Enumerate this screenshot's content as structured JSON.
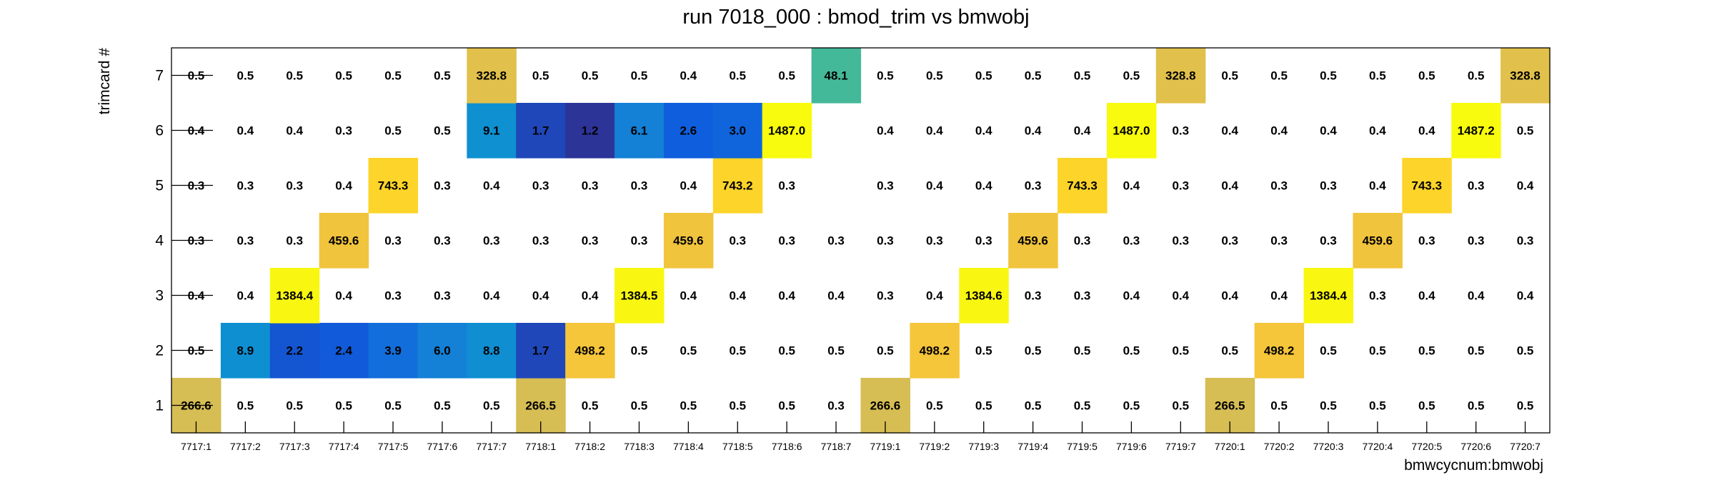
{
  "chart_data": {
    "type": "heatmap",
    "title": "run 7018_000 : bmod_trim vs bmwobj",
    "xlabel": "bmwcycnum:bmwobj",
    "ylabel": "trimcard #",
    "x_categories": [
      "7717:1",
      "7717:2",
      "7717:3",
      "7717:4",
      "7717:5",
      "7717:6",
      "7717:7",
      "7718:1",
      "7718:2",
      "7718:3",
      "7718:4",
      "7718:5",
      "7718:6",
      "7718:7",
      "7719:1",
      "7719:2",
      "7719:3",
      "7719:4",
      "7719:5",
      "7719:6",
      "7719:7",
      "7720:1",
      "7720:2",
      "7720:3",
      "7720:4",
      "7720:5",
      "7720:6",
      "7720:7"
    ],
    "y_categories": [
      "1",
      "2",
      "3",
      "4",
      "5",
      "6",
      "7"
    ],
    "value_labels": [
      [
        "266.6",
        "0.5",
        "0.5",
        "0.5",
        "0.5",
        "0.5",
        "0.5",
        "266.5",
        "0.5",
        "0.5",
        "0.5",
        "0.5",
        "0.5",
        "0.3",
        "266.6",
        "0.5",
        "0.5",
        "0.5",
        "0.5",
        "0.5",
        "0.5",
        "266.5",
        "0.5",
        "0.5",
        "0.5",
        "0.5",
        "0.5",
        "0.5"
      ],
      [
        "0.5",
        "8.9",
        "2.2",
        "2.4",
        "3.9",
        "6.0",
        "8.8",
        "1.7",
        "498.2",
        "0.5",
        "0.5",
        "0.5",
        "0.5",
        "0.5",
        "0.5",
        "498.2",
        "0.5",
        "0.5",
        "0.5",
        "0.5",
        "0.5",
        "0.5",
        "498.2",
        "0.5",
        "0.5",
        "0.5",
        "0.5",
        "0.5"
      ],
      [
        "0.4",
        "0.4",
        "1384.4",
        "0.4",
        "0.3",
        "0.3",
        "0.4",
        "0.4",
        "0.4",
        "1384.5",
        "0.4",
        "0.4",
        "0.4",
        "0.4",
        "0.3",
        "0.4",
        "1384.6",
        "0.3",
        "0.3",
        "0.4",
        "0.4",
        "0.4",
        "0.4",
        "1384.4",
        "0.3",
        "0.4",
        "0.4",
        "0.4"
      ],
      [
        "0.3",
        "0.3",
        "0.3",
        "459.6",
        "0.3",
        "0.3",
        "0.3",
        "0.3",
        "0.3",
        "0.3",
        "459.6",
        "0.3",
        "0.3",
        "0.3",
        "0.3",
        "0.3",
        "0.3",
        "459.6",
        "0.3",
        "0.3",
        "0.3",
        "0.3",
        "0.3",
        "0.3",
        "459.6",
        "0.3",
        "0.3",
        "0.3"
      ],
      [
        "0.3",
        "0.3",
        "0.3",
        "0.4",
        "743.3",
        "0.3",
        "0.4",
        "0.3",
        "0.3",
        "0.3",
        "0.4",
        "743.2",
        "0.3",
        null,
        "0.3",
        "0.4",
        "0.4",
        "0.3",
        "743.3",
        "0.4",
        "0.3",
        "0.4",
        "0.3",
        "0.3",
        "0.4",
        "743.3",
        "0.3",
        "0.4"
      ],
      [
        "0.4",
        "0.4",
        "0.4",
        "0.3",
        "0.5",
        "0.5",
        "9.1",
        "1.7",
        "1.2",
        "6.1",
        "2.6",
        "3.0",
        "1487.0",
        null,
        "0.4",
        "0.4",
        "0.4",
        "0.4",
        "0.4",
        "1487.0",
        "0.3",
        "0.4",
        "0.4",
        "0.4",
        "0.4",
        "0.4",
        "1487.2",
        "0.5"
      ],
      [
        "0.5",
        "0.5",
        "0.5",
        "0.5",
        "0.5",
        "0.5",
        "328.8",
        "0.5",
        "0.5",
        "0.5",
        "0.4",
        "0.5",
        "0.5",
        "48.1",
        "0.5",
        "0.5",
        "0.5",
        "0.5",
        "0.5",
        "0.5",
        "328.8",
        "0.5",
        "0.5",
        "0.5",
        "0.5",
        "0.5",
        "0.5",
        "328.8"
      ]
    ],
    "values": [
      [
        266.6,
        0.5,
        0.5,
        0.5,
        0.5,
        0.5,
        0.5,
        266.5,
        0.5,
        0.5,
        0.5,
        0.5,
        0.5,
        0.3,
        266.6,
        0.5,
        0.5,
        0.5,
        0.5,
        0.5,
        0.5,
        266.5,
        0.5,
        0.5,
        0.5,
        0.5,
        0.5,
        0.5
      ],
      [
        0.5,
        8.9,
        2.2,
        2.4,
        3.9,
        6.0,
        8.8,
        1.7,
        498.2,
        0.5,
        0.5,
        0.5,
        0.5,
        0.5,
        0.5,
        498.2,
        0.5,
        0.5,
        0.5,
        0.5,
        0.5,
        0.5,
        498.2,
        0.5,
        0.5,
        0.5,
        0.5,
        0.5
      ],
      [
        0.4,
        0.4,
        1384.4,
        0.4,
        0.3,
        0.3,
        0.4,
        0.4,
        0.4,
        1384.5,
        0.4,
        0.4,
        0.4,
        0.4,
        0.3,
        0.4,
        1384.6,
        0.3,
        0.3,
        0.4,
        0.4,
        0.4,
        0.4,
        1384.4,
        0.3,
        0.4,
        0.4,
        0.4
      ],
      [
        0.3,
        0.3,
        0.3,
        459.6,
        0.3,
        0.3,
        0.3,
        0.3,
        0.3,
        0.3,
        459.6,
        0.3,
        0.3,
        0.3,
        0.3,
        0.3,
        0.3,
        459.6,
        0.3,
        0.3,
        0.3,
        0.3,
        0.3,
        0.3,
        459.6,
        0.3,
        0.3,
        0.3
      ],
      [
        0.3,
        0.3,
        0.3,
        0.4,
        743.3,
        0.3,
        0.4,
        0.3,
        0.3,
        0.3,
        0.4,
        743.2,
        0.3,
        null,
        0.3,
        0.4,
        0.4,
        0.3,
        743.3,
        0.4,
        0.3,
        0.4,
        0.3,
        0.3,
        0.4,
        743.3,
        0.3,
        0.4
      ],
      [
        0.4,
        0.4,
        0.4,
        0.3,
        0.5,
        0.5,
        9.1,
        1.7,
        1.2,
        6.1,
        2.6,
        3.0,
        1487.0,
        null,
        0.4,
        0.4,
        0.4,
        0.4,
        0.4,
        1487.0,
        0.3,
        0.4,
        0.4,
        0.4,
        0.4,
        0.4,
        1487.2,
        0.5
      ],
      [
        0.5,
        0.5,
        0.5,
        0.5,
        0.5,
        0.5,
        328.8,
        0.5,
        0.5,
        0.5,
        0.4,
        0.5,
        0.5,
        48.1,
        0.5,
        0.5,
        0.5,
        0.5,
        0.5,
        0.5,
        328.8,
        0.5,
        0.5,
        0.5,
        0.5,
        0.5,
        0.5,
        328.8
      ]
    ],
    "color_scale": {
      "min": 1.0,
      "stops": [
        "#352a87",
        "#0f5cdd",
        "#1481d6",
        "#06a4ca",
        "#2eb7a4",
        "#87bf77",
        "#d1bb59",
        "#fec832",
        "#f9fb0e"
      ],
      "colored_min_value": 1.0,
      "low_values_uncolored": true
    },
    "grid": false,
    "legend": "none"
  }
}
